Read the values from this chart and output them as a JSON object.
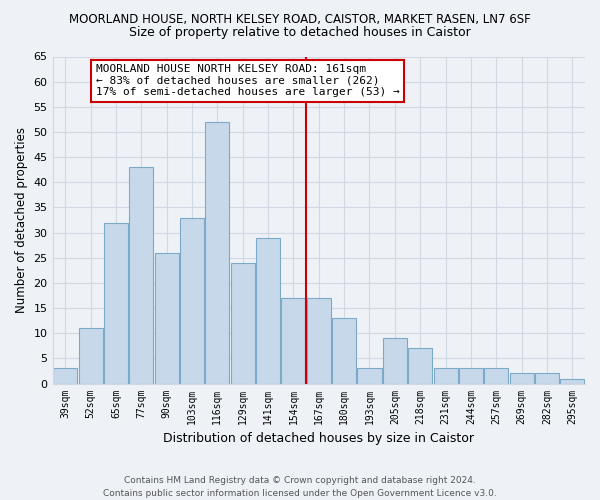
{
  "title": "MOORLAND HOUSE, NORTH KELSEY ROAD, CAISTOR, MARKET RASEN, LN7 6SF",
  "subtitle": "Size of property relative to detached houses in Caistor",
  "xlabel": "Distribution of detached houses by size in Caistor",
  "ylabel": "Number of detached properties",
  "categories": [
    "39sqm",
    "52sqm",
    "65sqm",
    "77sqm",
    "90sqm",
    "103sqm",
    "116sqm",
    "129sqm",
    "141sqm",
    "154sqm",
    "167sqm",
    "180sqm",
    "193sqm",
    "205sqm",
    "218sqm",
    "231sqm",
    "244sqm",
    "257sqm",
    "269sqm",
    "282sqm",
    "295sqm"
  ],
  "values": [
    3,
    11,
    32,
    43,
    26,
    33,
    52,
    24,
    29,
    17,
    17,
    13,
    3,
    9,
    7,
    3,
    3,
    3,
    2,
    2,
    1
  ],
  "bar_color": "#c8d8eb",
  "bar_edge_color": "#7baac8",
  "vline_x": 9.5,
  "vline_color": "#cc0000",
  "ylim": [
    0,
    65
  ],
  "yticks": [
    0,
    5,
    10,
    15,
    20,
    25,
    30,
    35,
    40,
    45,
    50,
    55,
    60,
    65
  ],
  "annotation_title": "MOORLAND HOUSE NORTH KELSEY ROAD: 161sqm",
  "annotation_line1": "← 83% of detached houses are smaller (262)",
  "annotation_line2": "17% of semi-detached houses are larger (53) →",
  "footer_line1": "Contains HM Land Registry data © Crown copyright and database right 2024.",
  "footer_line2": "Contains public sector information licensed under the Open Government Licence v3.0.",
  "background_color": "#eef2f7",
  "grid_color": "#d0d8e4"
}
